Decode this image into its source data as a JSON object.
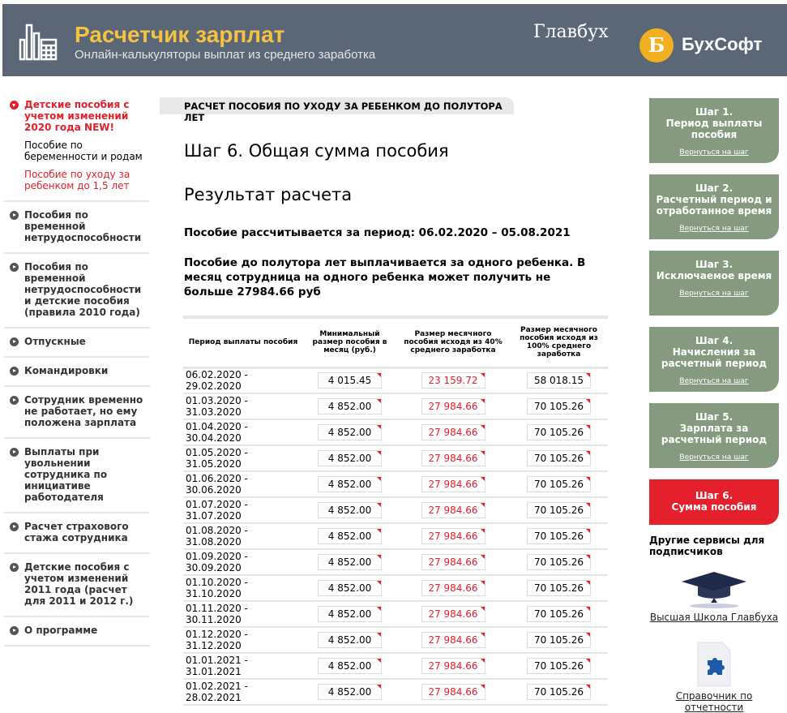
{
  "header": {
    "title": "Расчетчик зарплат",
    "subtitle": "Онлайн-калькуляторы выплат из среднего заработка",
    "logo_glavbuh": "Главбух",
    "logo_buhsoft": "БухСофт",
    "logo_buhsoft_letter": "Б"
  },
  "sidebar": {
    "items": [
      {
        "label": "Детские пособия с учетом изменений 2020 года NEW!",
        "active": true,
        "subitems": [
          {
            "label": "Пособие по беременности и родам",
            "active": false
          },
          {
            "label": "Пособие по уходу за ребенком до 1,5 лет",
            "active": true
          }
        ]
      },
      {
        "label": "Пособия по временной нетрудоспособности"
      },
      {
        "label": "Пособия по временной нетрудоспособности и детские пособия (правила 2010 года)"
      },
      {
        "label": "Отпускные"
      },
      {
        "label": "Командировки"
      },
      {
        "label": "Сотрудник временно не работает, но ему положена зарплата"
      },
      {
        "label": "Выплаты при увольнении сотрудника по инициативе работодателя"
      },
      {
        "label": "Расчет страхового стажа сотрудника"
      },
      {
        "label": "Детские пособия с учетом изменений 2011 года (расчет для 2011 и 2012 г.)"
      },
      {
        "label": "О программе"
      }
    ]
  },
  "main": {
    "section_tag": "РАСЧЕТ ПОСОБИЯ ПО УХОДУ ЗА РЕБЕНКОМ ДО ПОЛУТОРА ЛЕТ",
    "step_title": "Шаг 6. Общая сумма пособия",
    "result_title": "Результат расчета",
    "period_text": "Пособие рассчитывается за период: 06.02.2020 – 05.08.2021",
    "limit_text": "Пособие до полутора лет выплачивается за одного ребенка. В месяц сотрудница на одного ребенка может получить не больше 27984.66 руб",
    "table": {
      "headers": [
        "Период выплаты пособия",
        "Минимальный размер пособия в месяц (руб.)",
        "Размер месячного пособия исходя из 40% среднего заработка",
        "Размер месячного пособия исходя из 100% среднего заработка"
      ],
      "rows": [
        [
          "06.02.2020 - 29.02.2020",
          "4 015.45",
          "23 159.72",
          "58 018.15"
        ],
        [
          "01.03.2020 - 31.03.2020",
          "4 852.00",
          "27 984.66",
          "70 105.26"
        ],
        [
          "01.04.2020 - 30.04.2020",
          "4 852.00",
          "27 984.66",
          "70 105.26"
        ],
        [
          "01.05.2020 - 31.05.2020",
          "4 852.00",
          "27 984.66",
          "70 105.26"
        ],
        [
          "01.06.2020 - 30.06.2020",
          "4 852.00",
          "27 984.66",
          "70 105.26"
        ],
        [
          "01.07.2020 - 31.07.2020",
          "4 852.00",
          "27 984.66",
          "70 105.26"
        ],
        [
          "01.08.2020 - 31.08.2020",
          "4 852.00",
          "27 984.66",
          "70 105.26"
        ],
        [
          "01.09.2020 - 30.09.2020",
          "4 852.00",
          "27 984.66",
          "70 105.26"
        ],
        [
          "01.10.2020 - 31.10.2020",
          "4 852.00",
          "27 984.66",
          "70 105.26"
        ],
        [
          "01.11.2020 - 30.11.2020",
          "4 852.00",
          "27 984.66",
          "70 105.26"
        ],
        [
          "01.12.2020 - 31.12.2020",
          "4 852.00",
          "27 984.66",
          "70 105.26"
        ],
        [
          "01.01.2021 - 31.01.2021",
          "4 852.00",
          "27 984.66",
          "70 105.26"
        ],
        [
          "01.02.2021 - 28.02.2021",
          "4 852.00",
          "27 984.66",
          "70 105.26"
        ]
      ]
    }
  },
  "steps": [
    {
      "label": "Шаг 1.\nПериод выплаты пособия",
      "link": "Вернуться на шаг"
    },
    {
      "label": "Шаг 2.\nРасчетный период и отработанное время",
      "link": "Вернуться на шаг"
    },
    {
      "label": "Шаг 3.\nИсключаемое время",
      "link": "Вернуться на шаг"
    },
    {
      "label": "Шаг 4.\nНачисления за расчетный период",
      "link": "Вернуться на шаг"
    },
    {
      "label": "Шаг 5.\nЗарплата за расчетный период",
      "link": "Вернуться на шаг"
    },
    {
      "label": "Шаг 6.\nСумма пособия",
      "current": true
    }
  ],
  "other": {
    "title": "Другие сервисы для подписчиков",
    "services": [
      {
        "label": "Высшая Школа Главбуха",
        "icon": "graduation-cap-icon"
      },
      {
        "label": "Справочник по отчетности",
        "icon": "puzzle-document-icon"
      }
    ]
  },
  "colors": {
    "header_bg": "#5b6677",
    "title": "#f5c242",
    "accent": "#e3202b",
    "step_bg": "#869a80"
  }
}
